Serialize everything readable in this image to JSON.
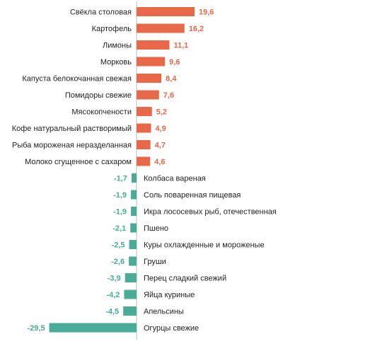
{
  "chart_data": {
    "type": "bar",
    "orientation": "horizontal",
    "categories": [
      "Свёкла столовая",
      "Картофель",
      "Лимоны",
      "Морковь",
      "Капуста белокочанная свежая",
      "Помидоры свежие",
      "Мясокопчености",
      "Кофе натуральный растворимый",
      "Рыба мороженая неразделанная",
      "Молоко сгущенное с сахаром",
      "Колбаса вареная",
      "Соль поваренная пищевая",
      "Икра лососевых рыб, отечественная",
      "Пшено",
      "Куры охлажденные и мороженые",
      "Груши",
      "Перец сладкий свежий",
      "Яйца куриные",
      "Апельсины",
      "Огурцы свежие"
    ],
    "values": [
      19.6,
      16.2,
      11.1,
      9.6,
      8.4,
      7.6,
      5.2,
      4.9,
      4.7,
      4.6,
      -1.7,
      -1.9,
      -1.9,
      -2.1,
      -2.5,
      -2.6,
      -3.9,
      -4.2,
      -4.5,
      -29.5
    ],
    "value_labels": [
      "19,6",
      "16,2",
      "11,1",
      "9,6",
      "8,4",
      "7,6",
      "5,2",
      "4,9",
      "4,7",
      "4,6",
      "-1,7",
      "-1,9",
      "-1,9",
      "-2,1",
      "-2,5",
      "-2,6",
      "-3,9",
      "-4,2",
      "-4,5",
      "-29,5"
    ],
    "colors": {
      "positive": "#e8684a",
      "negative": "#4aab98",
      "axis": "#bbbbbb"
    },
    "grid": false,
    "legend": "none",
    "xlim": [
      -29.5,
      19.6
    ]
  }
}
